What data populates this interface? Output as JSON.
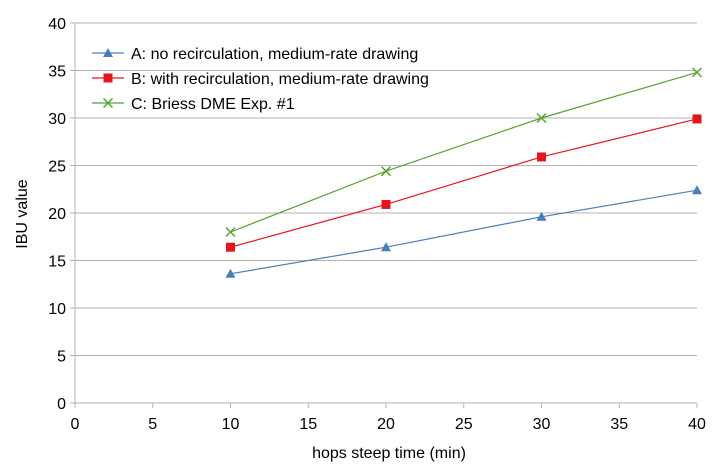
{
  "chart_data": {
    "type": "line",
    "xlabel": "hops steep time (min)",
    "ylabel": "IBU value",
    "xlim": [
      0,
      40
    ],
    "ylim": [
      0,
      40
    ],
    "xticks": [
      "0",
      "5",
      "10",
      "15",
      "20",
      "25",
      "30",
      "35",
      "40"
    ],
    "yticks": [
      "0",
      "5",
      "10",
      "15",
      "20",
      "25",
      "30",
      "35",
      "40"
    ],
    "x": [
      10,
      20,
      30,
      40
    ],
    "grid": "horizontal",
    "legend": "top-left",
    "series": [
      {
        "name": "A: no recirculation, medium-rate drawing",
        "values": [
          13.6,
          16.4,
          19.6,
          22.4
        ],
        "color": "#4a7ebb",
        "marker": "triangle"
      },
      {
        "name": "B: with recirculation, medium-rate drawing",
        "values": [
          16.4,
          20.9,
          25.9,
          29.9
        ],
        "color": "#e5151e",
        "marker": "square"
      },
      {
        "name": "C: Briess DME Exp. #1",
        "values": [
          18.0,
          24.4,
          30.0,
          34.8
        ],
        "color": "#56a432",
        "marker": "x"
      }
    ]
  }
}
